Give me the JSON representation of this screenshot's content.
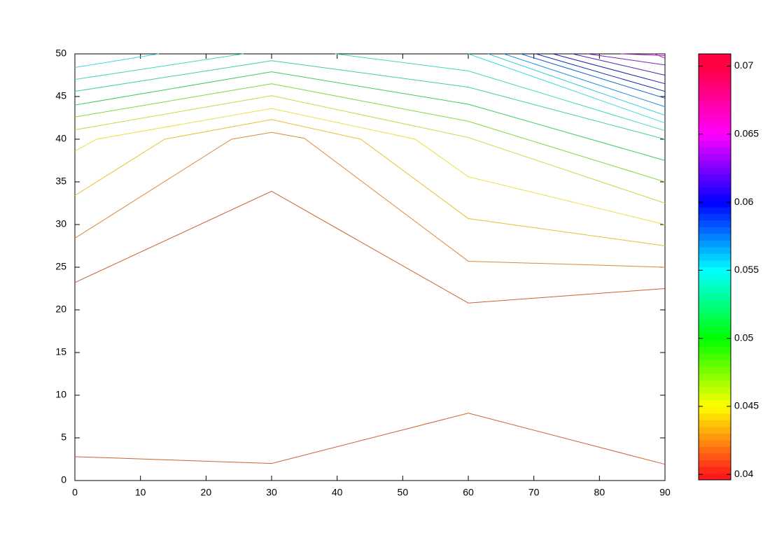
{
  "chart_data": {
    "type": "contour",
    "xlim": [
      0,
      90
    ],
    "ylim": [
      0,
      50
    ],
    "xticks": [
      0,
      10,
      20,
      30,
      40,
      50,
      60,
      70,
      80,
      90
    ],
    "yticks": [
      0,
      5,
      10,
      15,
      20,
      25,
      30,
      35,
      40,
      45,
      50
    ],
    "series": [
      {
        "color": "#c86432",
        "x": [
          0,
          30,
          60,
          90
        ],
        "values": [
          2.8,
          2,
          7.9,
          1.9
        ]
      },
      {
        "color": "#c86432",
        "x": [
          0,
          30,
          60,
          90
        ],
        "values": [
          23.2,
          33.9,
          20.8,
          22.5
        ]
      },
      {
        "color": "#d98a3a",
        "x": [
          0,
          23.9,
          30,
          35,
          60,
          90
        ],
        "values": [
          28.4,
          40,
          40.8,
          40.1,
          25.7,
          25
        ]
      },
      {
        "color": "#e6c030",
        "x": [
          0,
          13.7,
          30,
          43.6,
          60,
          90
        ],
        "values": [
          33.4,
          40,
          42.3,
          40,
          30.7,
          27.5
        ]
      },
      {
        "color": "#e8e040",
        "x": [
          0,
          3.3,
          30,
          51.9,
          60,
          90
        ],
        "values": [
          38.6,
          40,
          43.6,
          40,
          35.6,
          30
        ]
      },
      {
        "color": "#b8e040",
        "x": [
          0,
          30,
          60,
          90
        ],
        "values": [
          41.1,
          45.1,
          40.2,
          32.5
        ]
      },
      {
        "color": "#80d840",
        "x": [
          0,
          30,
          60,
          90
        ],
        "values": [
          42.6,
          46.5,
          42.1,
          35
        ]
      },
      {
        "color": "#40c860",
        "x": [
          0,
          30,
          60,
          90
        ],
        "values": [
          44,
          47.9,
          44.1,
          37.5
        ]
      },
      {
        "color": "#40d090",
        "x": [
          0,
          30,
          60,
          90
        ],
        "values": [
          45.6,
          49.2,
          46.1,
          40
        ]
      },
      {
        "color": "#40d8c0",
        "x": [
          0,
          25.7,
          null,
          39.7,
          60,
          90
        ],
        "values": [
          47,
          50,
          null,
          50,
          48,
          41
        ]
      },
      {
        "color": "#40d8d8",
        "x": [
          0,
          12.8,
          null,
          60,
          90
        ],
        "values": [
          48.4,
          50,
          null,
          50,
          41.9
        ]
      },
      {
        "color": "#30c8e0",
        "x": [
          63,
          90
        ],
        "values": [
          50,
          42.8
        ]
      },
      {
        "color": "#2090e0",
        "x": [
          65.4,
          90
        ],
        "values": [
          50,
          43.8
        ]
      },
      {
        "color": "#1060d0",
        "x": [
          68,
          90
        ],
        "values": [
          50,
          44.8
        ]
      },
      {
        "color": "#1030b0",
        "x": [
          70.3,
          90
        ],
        "values": [
          50,
          45.6
        ]
      },
      {
        "color": "#2020a0",
        "x": [
          72.9,
          90
        ],
        "values": [
          50,
          46.5
        ]
      },
      {
        "color": "#5020b0",
        "x": [
          75.9,
          90
        ],
        "values": [
          50,
          47.5
        ]
      },
      {
        "color": "#8020c0",
        "x": [
          78.2,
          90
        ],
        "values": [
          50,
          48.7
        ]
      },
      {
        "color": "#b020d0",
        "x": [
          83.3,
          90
        ],
        "values": [
          50,
          49.8
        ]
      },
      {
        "color": "#d020d0",
        "x": [
          88.4,
          90
        ],
        "values": [
          50,
          49.5
        ]
      }
    ],
    "colorbar": {
      "lim": [
        0.0396,
        0.0709
      ],
      "ticks": [
        0.04,
        0.045,
        0.05,
        0.055,
        0.06,
        0.065,
        0.07
      ],
      "colors": [
        "#ff1a1a",
        "#ffff00",
        "#00ff00",
        "#00ffff",
        "#0000ff",
        "#ff00ff",
        "#ff0040"
      ]
    }
  }
}
